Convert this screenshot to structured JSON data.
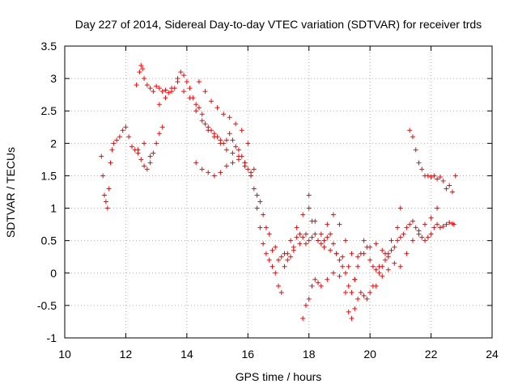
{
  "chart_data": {
    "type": "scatter",
    "title": "Day 227 of 2014, Sidereal Day-to-day VTEC variation (SDTVAR) for receiver trds",
    "xlabel": "GPS time / hours",
    "ylabel": "SDTVAR / TECUs",
    "xlim": [
      10,
      24
    ],
    "ylim": [
      -1,
      3.5
    ],
    "xticks": [
      "10",
      "12",
      "14",
      "16",
      "18",
      "20",
      "22",
      "24"
    ],
    "yticks": [
      "-1",
      "-0.5",
      "0",
      "0.5",
      "1",
      "1.5",
      "2",
      "2.5",
      "3",
      "3.5"
    ],
    "grid": true,
    "marker": "+",
    "color": "#ff0000",
    "series": [
      {
        "points": [
          [
            11.2,
            1.8
          ],
          [
            11.25,
            1.5
          ],
          [
            11.3,
            1.2
          ],
          [
            11.35,
            1.1
          ],
          [
            11.4,
            1.0
          ],
          [
            11.45,
            1.3
          ],
          [
            11.5,
            1.7
          ],
          [
            11.55,
            1.9
          ],
          [
            11.6,
            2.0
          ],
          [
            11.7,
            2.05
          ],
          [
            11.8,
            2.1
          ],
          [
            11.9,
            2.2
          ],
          [
            12.0,
            2.25
          ],
          [
            12.1,
            2.1
          ],
          [
            12.2,
            1.95
          ],
          [
            12.3,
            1.9
          ],
          [
            12.4,
            1.85
          ],
          [
            12.5,
            1.75
          ],
          [
            12.6,
            1.65
          ],
          [
            12.7,
            1.6
          ],
          [
            12.8,
            1.7
          ],
          [
            12.9,
            1.85
          ],
          [
            13.0,
            2.0
          ],
          [
            13.1,
            2.15
          ],
          [
            13.2,
            2.25
          ],
          [
            12.35,
            2.9
          ],
          [
            12.45,
            3.1
          ],
          [
            12.5,
            3.2
          ],
          [
            12.55,
            3.15
          ],
          [
            12.6,
            3.0
          ],
          [
            12.7,
            2.9
          ],
          [
            12.8,
            2.85
          ],
          [
            12.9,
            2.8
          ],
          [
            13.0,
            2.88
          ],
          [
            13.1,
            2.85
          ],
          [
            13.2,
            2.8
          ],
          [
            13.3,
            2.82
          ],
          [
            13.4,
            2.78
          ],
          [
            13.5,
            2.8
          ],
          [
            13.6,
            2.85
          ],
          [
            13.7,
            3.0
          ],
          [
            13.8,
            3.1
          ],
          [
            13.9,
            3.05
          ],
          [
            14.0,
            2.95
          ],
          [
            14.1,
            2.85
          ],
          [
            14.2,
            2.7
          ],
          [
            14.3,
            2.6
          ],
          [
            14.4,
            2.55
          ],
          [
            14.5,
            2.45
          ],
          [
            14.6,
            2.3
          ],
          [
            14.7,
            2.25
          ],
          [
            14.8,
            2.2
          ],
          [
            14.9,
            2.15
          ],
          [
            15.0,
            2.1
          ],
          [
            15.1,
            2.05
          ],
          [
            15.2,
            2.0
          ],
          [
            15.3,
            2.05
          ],
          [
            15.4,
            2.15
          ],
          [
            15.5,
            2.05
          ],
          [
            15.6,
            1.95
          ],
          [
            15.7,
            1.9
          ],
          [
            15.8,
            1.8
          ],
          [
            15.9,
            1.7
          ],
          [
            16.0,
            1.6
          ],
          [
            16.1,
            1.55
          ],
          [
            16.2,
            1.3
          ],
          [
            16.3,
            1.0
          ],
          [
            16.4,
            0.7
          ],
          [
            16.5,
            0.45
          ],
          [
            16.6,
            0.3
          ],
          [
            16.7,
            0.2
          ],
          [
            16.8,
            0.1
          ],
          [
            16.9,
            0.0
          ],
          [
            17.0,
            -0.2
          ],
          [
            17.1,
            -0.3
          ],
          [
            17.2,
            0.1
          ],
          [
            17.3,
            0.2
          ],
          [
            17.4,
            0.25
          ],
          [
            17.5,
            0.4
          ],
          [
            17.6,
            0.55
          ],
          [
            17.7,
            0.6
          ],
          [
            17.8,
            0.55
          ],
          [
            17.9,
            0.45
          ],
          [
            18.0,
            0.5
          ],
          [
            18.1,
            0.55
          ],
          [
            18.2,
            0.6
          ],
          [
            18.3,
            0.5
          ],
          [
            18.4,
            0.45
          ],
          [
            18.5,
            0.5
          ],
          [
            18.6,
            0.55
          ],
          [
            18.7,
            0.6
          ],
          [
            18.8,
            0.45
          ],
          [
            18.9,
            0.3
          ],
          [
            19.0,
            0.2
          ],
          [
            19.1,
            0.1
          ],
          [
            19.2,
            0.0
          ],
          [
            19.3,
            -0.2
          ],
          [
            19.4,
            -0.3
          ],
          [
            19.5,
            -0.1
          ],
          [
            19.6,
            0.1
          ],
          [
            19.7,
            0.3
          ],
          [
            19.8,
            0.5
          ],
          [
            19.9,
            0.4
          ],
          [
            20.0,
            0.2
          ],
          [
            20.1,
            0.1
          ],
          [
            20.2,
            0.05
          ],
          [
            20.3,
            0.0
          ],
          [
            20.4,
            0.1
          ],
          [
            20.5,
            0.2
          ],
          [
            20.6,
            0.3
          ],
          [
            20.7,
            0.35
          ],
          [
            20.8,
            0.4
          ],
          [
            20.9,
            0.5
          ],
          [
            21.0,
            0.55
          ],
          [
            21.1,
            0.6
          ],
          [
            21.2,
            0.7
          ],
          [
            21.3,
            0.75
          ],
          [
            21.4,
            0.8
          ],
          [
            21.5,
            0.7
          ],
          [
            21.6,
            0.6
          ],
          [
            21.7,
            0.55
          ],
          [
            21.8,
            0.5
          ],
          [
            21.9,
            0.55
          ],
          [
            22.0,
            0.6
          ],
          [
            22.1,
            0.7
          ],
          [
            22.2,
            0.75
          ],
          [
            22.3,
            0.7
          ],
          [
            22.4,
            0.72
          ],
          [
            22.5,
            0.75
          ],
          [
            22.6,
            0.78
          ],
          [
            22.7,
            0.76
          ],
          [
            22.75,
            0.75
          ],
          [
            12.4,
            1.9
          ],
          [
            12.6,
            2.0
          ],
          [
            12.8,
            1.8
          ],
          [
            13.1,
            2.6
          ],
          [
            13.3,
            2.7
          ],
          [
            13.5,
            2.85
          ],
          [
            13.7,
            2.95
          ],
          [
            13.9,
            2.8
          ],
          [
            14.1,
            2.7
          ],
          [
            14.3,
            2.5
          ],
          [
            14.5,
            2.35
          ],
          [
            14.7,
            2.2
          ],
          [
            14.9,
            2.1
          ],
          [
            15.1,
            2.0
          ],
          [
            15.3,
            1.9
          ],
          [
            15.5,
            1.85
          ],
          [
            15.7,
            1.8
          ],
          [
            15.9,
            1.7
          ],
          [
            16.1,
            1.5
          ],
          [
            16.3,
            1.2
          ],
          [
            16.5,
            0.9
          ],
          [
            16.7,
            0.6
          ],
          [
            16.9,
            0.4
          ],
          [
            17.1,
            0.25
          ],
          [
            17.3,
            0.3
          ],
          [
            17.5,
            0.35
          ],
          [
            17.7,
            0.45
          ],
          [
            17.9,
            0.6
          ],
          [
            18.0,
            1.0
          ],
          [
            18.1,
            0.8
          ],
          [
            18.3,
            0.5
          ],
          [
            18.5,
            0.4
          ],
          [
            18.7,
            0.35
          ],
          [
            18.9,
            0.3
          ],
          [
            19.1,
            0.25
          ],
          [
            19.3,
            0.1
          ],
          [
            19.5,
            -0.1
          ],
          [
            19.7,
            -0.3
          ],
          [
            19.9,
            -0.4
          ],
          [
            20.1,
            -0.2
          ],
          [
            20.3,
            0.1
          ],
          [
            20.5,
            0.3
          ],
          [
            20.7,
            0.5
          ],
          [
            20.9,
            0.7
          ],
          [
            21.0,
            1.0
          ],
          [
            14.4,
            2.95
          ],
          [
            14.6,
            2.8
          ],
          [
            14.8,
            2.65
          ],
          [
            15.0,
            2.55
          ],
          [
            15.2,
            2.45
          ],
          [
            15.4,
            2.4
          ],
          [
            15.6,
            2.3
          ],
          [
            15.8,
            2.2
          ],
          [
            16.0,
            2.0
          ],
          [
            16.2,
            1.6
          ],
          [
            16.4,
            1.1
          ],
          [
            16.6,
            0.7
          ],
          [
            16.8,
            0.35
          ],
          [
            17.0,
            0.2
          ],
          [
            17.2,
            0.3
          ],
          [
            17.4,
            0.5
          ],
          [
            17.6,
            0.7
          ],
          [
            17.8,
            0.9
          ],
          [
            18.0,
            1.2
          ],
          [
            18.2,
            0.8
          ],
          [
            18.4,
            0.6
          ],
          [
            18.6,
            0.75
          ],
          [
            18.8,
            0.9
          ],
          [
            19.0,
            0.75
          ],
          [
            19.2,
            0.5
          ],
          [
            19.4,
            0.3
          ],
          [
            19.6,
            0.25
          ],
          [
            19.8,
            0.3
          ],
          [
            20.0,
            0.4
          ],
          [
            20.2,
            0.45
          ],
          [
            20.4,
            0.35
          ],
          [
            20.6,
            0.25
          ],
          [
            20.8,
            0.15
          ],
          [
            21.0,
            0.1
          ],
          [
            21.2,
            0.3
          ],
          [
            21.4,
            0.5
          ],
          [
            21.6,
            0.65
          ],
          [
            21.8,
            0.75
          ],
          [
            22.0,
            0.85
          ],
          [
            22.2,
            1.0
          ],
          [
            14.3,
            1.7
          ],
          [
            14.5,
            1.6
          ],
          [
            14.7,
            1.55
          ],
          [
            14.9,
            1.5
          ],
          [
            15.1,
            1.55
          ],
          [
            15.3,
            1.65
          ],
          [
            15.5,
            1.7
          ],
          [
            15.7,
            1.75
          ],
          [
            15.9,
            1.65
          ],
          [
            16.1,
            1.5
          ],
          [
            17.8,
            -0.7
          ],
          [
            17.9,
            -0.5
          ],
          [
            18.0,
            -0.4
          ],
          [
            18.1,
            -0.2
          ],
          [
            18.2,
            -0.1
          ],
          [
            18.3,
            -0.15
          ],
          [
            18.4,
            -0.2
          ],
          [
            18.6,
            -0.1
          ],
          [
            18.8,
            0.0
          ],
          [
            19.0,
            -0.05
          ],
          [
            19.2,
            -0.3
          ],
          [
            19.3,
            -0.6
          ],
          [
            19.4,
            -0.7
          ],
          [
            19.5,
            -0.55
          ],
          [
            19.6,
            -0.4
          ],
          [
            19.8,
            -0.35
          ],
          [
            20.0,
            -0.3
          ],
          [
            20.2,
            -0.2
          ],
          [
            20.4,
            -0.05
          ],
          [
            20.6,
            0.05
          ],
          [
            21.3,
            2.2
          ],
          [
            21.4,
            2.1
          ],
          [
            21.5,
            1.9
          ],
          [
            21.6,
            1.7
          ],
          [
            21.7,
            1.6
          ],
          [
            21.8,
            1.5
          ],
          [
            21.9,
            1.5
          ],
          [
            22.0,
            1.48
          ],
          [
            22.1,
            1.5
          ],
          [
            22.2,
            1.45
          ],
          [
            22.3,
            1.48
          ],
          [
            22.4,
            1.42
          ],
          [
            22.5,
            1.3
          ],
          [
            22.6,
            1.35
          ],
          [
            22.7,
            1.25
          ],
          [
            22.8,
            1.5
          ]
        ]
      }
    ]
  }
}
